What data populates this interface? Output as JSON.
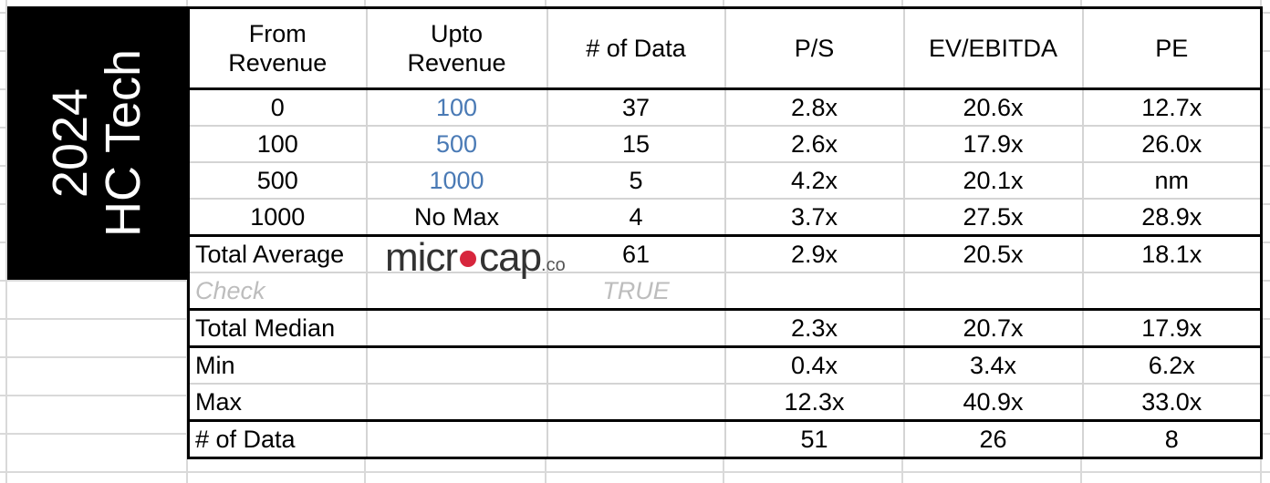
{
  "title": {
    "line1": "2024",
    "line2": "HC Tech"
  },
  "logo": {
    "text": "microcap.co",
    "part1": "micr",
    "part2": "cap",
    "suffix": ".co",
    "dot_color": "#d7263d"
  },
  "colors": {
    "link_blue": "#4a7ab5",
    "check_gray": "#bdbdbd",
    "title_bg": "#000000"
  },
  "headers": [
    "From\nRevenue",
    "Upto\nRevenue",
    "# of Data",
    "P/S",
    "EV/EBITDA",
    "PE"
  ],
  "rows": [
    {
      "cells": [
        "0",
        "100",
        "37",
        "2.8x",
        "20.6x",
        "12.7x"
      ]
    },
    {
      "cells": [
        "100",
        "500",
        "15",
        "2.6x",
        "17.9x",
        "26.0x"
      ]
    },
    {
      "cells": [
        "500",
        "1000",
        "5",
        "4.2x",
        "20.1x",
        "nm"
      ]
    },
    {
      "cells": [
        "1000",
        "No Max",
        "4",
        "3.7x",
        "27.5x",
        "28.9x"
      ]
    },
    {
      "cells": [
        "Total Average",
        "",
        "61",
        "2.9x",
        "20.5x",
        "18.1x"
      ]
    },
    {
      "cells": [
        "Check",
        "",
        "TRUE",
        "",
        "",
        ""
      ]
    },
    {
      "cells": [
        "Total Median",
        "",
        "",
        "2.3x",
        "20.7x",
        "17.9x"
      ]
    },
    {
      "cells": [
        "Min",
        "",
        "",
        "0.4x",
        "3.4x",
        "6.2x"
      ]
    },
    {
      "cells": [
        "Max",
        "",
        "",
        "12.3x",
        "40.9x",
        "33.0x"
      ]
    },
    {
      "cells": [
        "# of Data",
        "",
        "",
        "51",
        "26",
        "8"
      ]
    }
  ]
}
